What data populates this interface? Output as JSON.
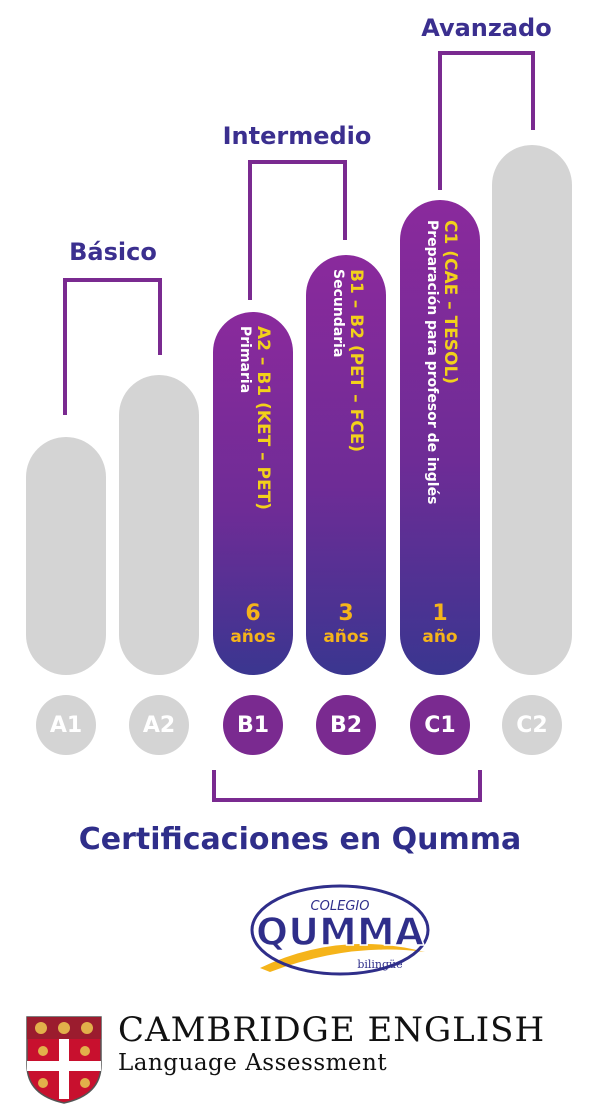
{
  "levels": {
    "basico": "Básico",
    "intermedio": "Intermedio",
    "avanzado": "Avanzado"
  },
  "bars": [
    {
      "code": "A1"
    },
    {
      "code": "A2"
    },
    {
      "code": "B1",
      "title": "A2 – B1 (KET – PET)",
      "subtitle": "Primaria",
      "years_num": "6",
      "years_unit": "años"
    },
    {
      "code": "B2",
      "title": "B1 – B2 (PET – FCE)",
      "subtitle": "Secundaria",
      "years_num": "3",
      "years_unit": "años"
    },
    {
      "code": "C1",
      "title": "C1 (CAE – TESOL)",
      "subtitle": "Preparación para profesor de inglés",
      "years_num": "1",
      "years_unit": "año"
    },
    {
      "code": "C2"
    }
  ],
  "certifications_title": "Certificaciones en Qumma",
  "school_logo": {
    "colegio": "COLEGIO",
    "name": "QUMMA",
    "bilingue": "bilingüe"
  },
  "cambridge": {
    "line1": "CAMBRIDGE ENGLISH",
    "line2": "Language Assessment"
  },
  "colors": {
    "purple": "#7a2a90",
    "gray": "#d4d4d4",
    "navy": "#2f2e8a",
    "yellow": "#f2d11a",
    "orange": "#f5b41a"
  }
}
